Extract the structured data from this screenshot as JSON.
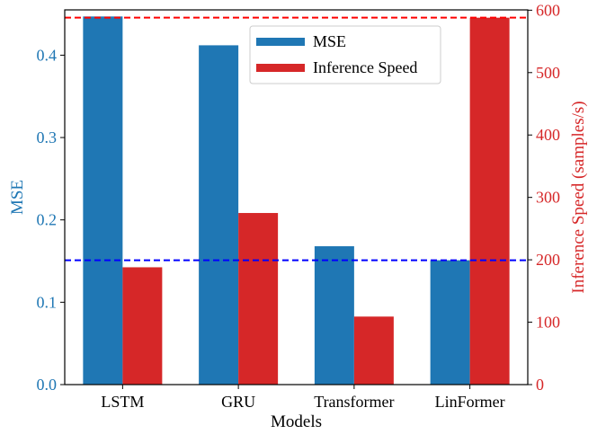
{
  "chart_data": {
    "type": "bar",
    "categories": [
      "LSTM",
      "GRU",
      "Transformer",
      "LinFormer"
    ],
    "series": [
      {
        "name": "MSE",
        "axis": "left",
        "color": "#1f77b4",
        "values": [
          0.447,
          0.412,
          0.168,
          0.151
        ]
      },
      {
        "name": "Inference Speed",
        "axis": "right",
        "color": "#d62728",
        "values": [
          188,
          275,
          109,
          588
        ]
      }
    ],
    "reference_lines": [
      {
        "axis": "left",
        "value": 0.151,
        "color": "#0000ff",
        "style": "dashed"
      },
      {
        "axis": "right",
        "value": 588,
        "color": "#ff0000",
        "style": "dashed"
      }
    ],
    "xlabel": "Models",
    "ylabel_left": "MSE",
    "ylabel_right": "Inference Speed (samples/s)",
    "ylim_left": [
      0,
      0.455
    ],
    "ylim_right": [
      0,
      600.5
    ],
    "yticks_left": [
      0.0,
      0.1,
      0.2,
      0.3,
      0.4
    ],
    "ytick_labels_left": [
      "0.0",
      "0.1",
      "0.2",
      "0.3",
      "0.4"
    ],
    "yticks_right": [
      0,
      100,
      200,
      300,
      400,
      500,
      600
    ],
    "ytick_labels_right": [
      "0",
      "100",
      "200",
      "300",
      "400",
      "500",
      "600"
    ],
    "left_axis_color": "#1f77b4",
    "right_axis_color": "#d62728",
    "legend_position": "upper-center",
    "grid": false
  }
}
